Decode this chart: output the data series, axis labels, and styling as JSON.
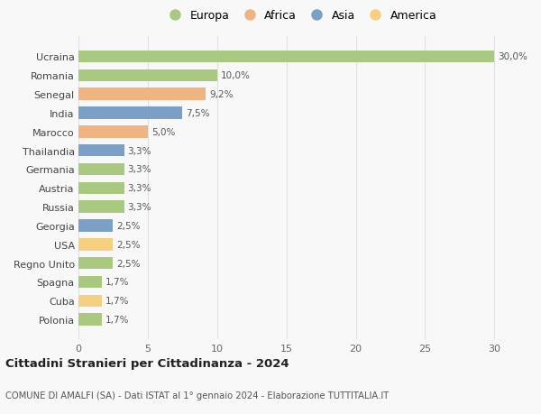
{
  "categories": [
    "Polonia",
    "Cuba",
    "Spagna",
    "Regno Unito",
    "USA",
    "Georgia",
    "Russia",
    "Austria",
    "Germania",
    "Thailandia",
    "Marocco",
    "India",
    "Senegal",
    "Romania",
    "Ucraina"
  ],
  "values": [
    1.7,
    1.7,
    1.7,
    2.5,
    2.5,
    2.5,
    3.3,
    3.3,
    3.3,
    3.3,
    5.0,
    7.5,
    9.2,
    10.0,
    30.0
  ],
  "continents": [
    "Europa",
    "America",
    "Europa",
    "Europa",
    "America",
    "Asia",
    "Europa",
    "Europa",
    "Europa",
    "Asia",
    "Africa",
    "Asia",
    "Africa",
    "Europa",
    "Europa"
  ],
  "colors": {
    "Europa": "#a8c97f",
    "Africa": "#f0b482",
    "Asia": "#7b9fc5",
    "America": "#f5d080"
  },
  "labels": [
    "1,7%",
    "1,7%",
    "1,7%",
    "2,5%",
    "2,5%",
    "2,5%",
    "3,3%",
    "3,3%",
    "3,3%",
    "3,3%",
    "5,0%",
    "7,5%",
    "9,2%",
    "10,0%",
    "30,0%"
  ],
  "title": "Cittadini Stranieri per Cittadinanza - 2024",
  "subtitle": "COMUNE DI AMALFI (SA) - Dati ISTAT al 1° gennaio 2024 - Elaborazione TUTTITALIA.IT",
  "xlim": [
    0,
    32
  ],
  "xticks": [
    0,
    5,
    10,
    15,
    20,
    25,
    30
  ],
  "legend_order": [
    "Europa",
    "Africa",
    "Asia",
    "America"
  ],
  "bg_color": "#f8f8f8",
  "bar_height": 0.65,
  "grid_color": "#e0e0e0"
}
